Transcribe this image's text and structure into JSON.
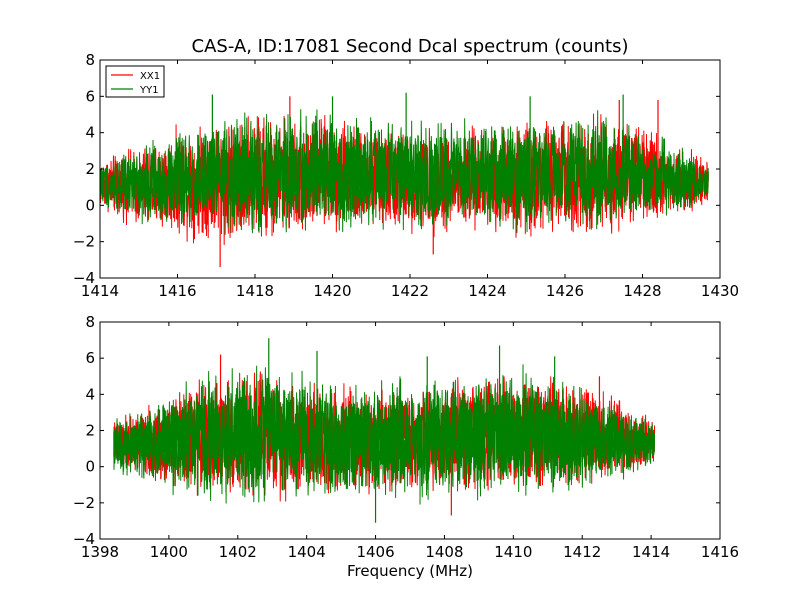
{
  "figure": {
    "title": "CAS-A, ID:17081 Second Dcal spectrum (counts)",
    "xlabel": "Frequency (MHz)"
  },
  "chart_data": [
    {
      "type": "line",
      "title": "CAS-A, ID:17081 Second Dcal spectrum (counts)",
      "xlabel": "",
      "ylabel": "",
      "xlim": [
        1414,
        1430
      ],
      "ylim": [
        -4,
        8
      ],
      "xticks": [
        "1414",
        "1416",
        "1418",
        "1420",
        "1422",
        "1424",
        "1426",
        "1428",
        "1430"
      ],
      "yticks": [
        "−4",
        "−2",
        "0",
        "2",
        "4",
        "6",
        "8"
      ],
      "grid": false,
      "legend_position": "top-left",
      "data_x_range": [
        1414.0,
        1429.7
      ],
      "series": [
        {
          "name": "XX1",
          "color": "#ff0000",
          "envelope": {
            "x": [
              1414.0,
              1415.0,
              1416.5,
              1418.0,
              1419.5,
              1421.0,
              1422.5,
              1424.0,
              1425.5,
              1427.0,
              1428.5,
              1429.7
            ],
            "max": [
              2.8,
              3.6,
              5.0,
              5.6,
              5.4,
              4.9,
              4.5,
              4.8,
              5.4,
              5.6,
              4.2,
              2.6
            ],
            "min": [
              -0.4,
              -1.6,
              -2.4,
              -2.6,
              -2.0,
              -1.8,
              -2.0,
              -2.0,
              -2.2,
              -2.0,
              -1.2,
              -0.2
            ]
          },
          "peaks": [
            [
              1417.1,
              -3.4
            ],
            [
              1418.9,
              6.0
            ],
            [
              1422.6,
              -2.7
            ],
            [
              1427.4,
              5.8
            ],
            [
              1428.4,
              5.8
            ]
          ]
        },
        {
          "name": "YY1",
          "color": "#008000",
          "envelope": {
            "x": [
              1414.0,
              1415.0,
              1416.5,
              1418.0,
              1419.5,
              1421.0,
              1422.5,
              1424.0,
              1425.5,
              1427.0,
              1428.5,
              1429.7
            ],
            "max": [
              2.6,
              3.4,
              5.0,
              5.6,
              5.8,
              5.2,
              5.0,
              5.0,
              5.2,
              5.6,
              4.0,
              2.4
            ],
            "min": [
              -0.2,
              -1.2,
              -2.0,
              -2.3,
              -2.2,
              -1.6,
              -1.6,
              -1.8,
              -1.8,
              -1.8,
              -1.0,
              0.0
            ]
          },
          "peaks": [
            [
              1416.9,
              6.1
            ],
            [
              1420.0,
              6.0
            ],
            [
              1421.9,
              6.2
            ],
            [
              1425.1,
              6.0
            ],
            [
              1427.5,
              6.1
            ]
          ]
        }
      ]
    },
    {
      "type": "line",
      "title": "",
      "xlabel": "Frequency (MHz)",
      "ylabel": "",
      "xlim": [
        1398,
        1416
      ],
      "ylim": [
        -4,
        8
      ],
      "xticks": [
        "1398",
        "1400",
        "1402",
        "1404",
        "1406",
        "1408",
        "1410",
        "1412",
        "1414",
        "1416"
      ],
      "yticks": [
        "−4",
        "−2",
        "0",
        "2",
        "4",
        "6",
        "8"
      ],
      "grid": false,
      "data_x_range": [
        1398.4,
        1414.1
      ],
      "series": [
        {
          "name": "XX1",
          "color": "#ff0000",
          "envelope": {
            "x": [
              1398.4,
              1399.5,
              1401.0,
              1402.5,
              1404.0,
              1405.5,
              1407.0,
              1408.5,
              1410.0,
              1411.5,
              1413.0,
              1414.1
            ],
            "max": [
              2.8,
              3.6,
              5.4,
              5.8,
              5.4,
              5.0,
              4.8,
              5.2,
              5.6,
              5.4,
              4.2,
              2.8
            ],
            "min": [
              -0.2,
              -1.2,
              -2.0,
              -2.2,
              -2.0,
              -1.8,
              -1.8,
              -2.0,
              -2.0,
              -1.8,
              -1.2,
              -0.2
            ]
          },
          "peaks": [
            [
              1401.5,
              6.2
            ],
            [
              1408.2,
              -2.7
            ],
            [
              1412.5,
              5.0
            ]
          ]
        },
        {
          "name": "YY1",
          "color": "#008000",
          "envelope": {
            "x": [
              1398.4,
              1399.5,
              1401.0,
              1402.5,
              1404.0,
              1405.5,
              1407.0,
              1408.5,
              1410.0,
              1411.5,
              1413.0,
              1414.1
            ],
            "max": [
              2.8,
              3.8,
              5.6,
              6.2,
              5.6,
              5.2,
              5.2,
              5.6,
              5.8,
              5.2,
              4.0,
              2.6
            ],
            "min": [
              -0.3,
              -1.3,
              -2.2,
              -2.6,
              -2.4,
              -2.3,
              -2.2,
              -2.2,
              -2.2,
              -1.8,
              -1.0,
              0.0
            ]
          },
          "peaks": [
            [
              1402.9,
              7.1
            ],
            [
              1404.3,
              6.4
            ],
            [
              1406.0,
              -3.1
            ],
            [
              1407.5,
              6.1
            ],
            [
              1409.6,
              6.7
            ],
            [
              1411.2,
              6.1
            ]
          ]
        }
      ]
    }
  ]
}
